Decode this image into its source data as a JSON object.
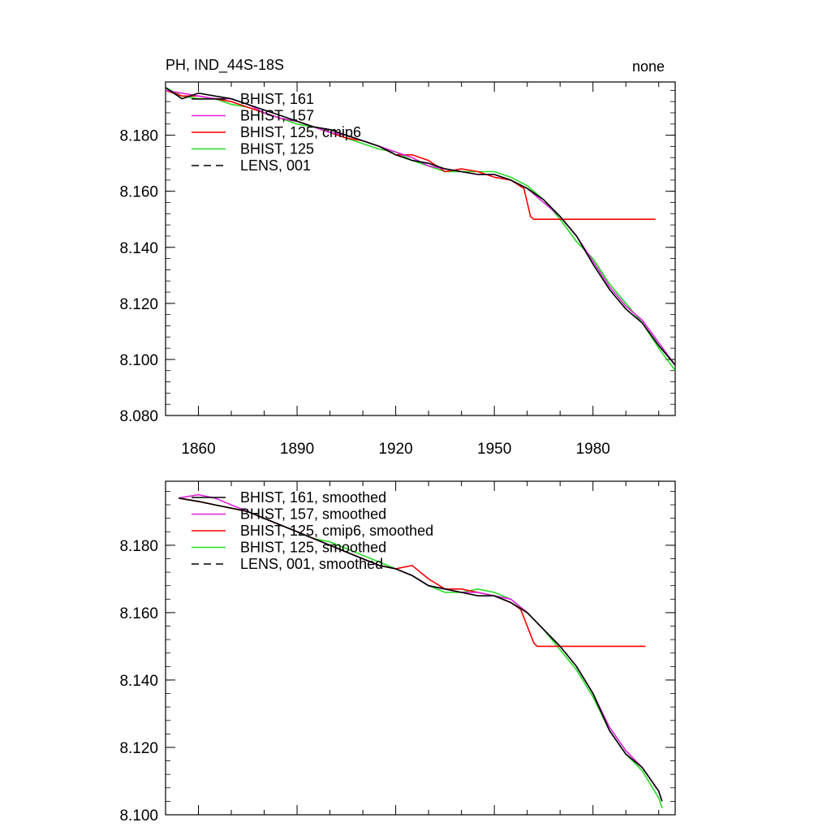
{
  "page": {
    "title_left": "PH, IND_44S-18S",
    "title_right": "none"
  },
  "colors": {
    "BHIST_161": "#000000",
    "BHIST_157": "#e020e0",
    "BHIST_125_cmip6": "#ff0000",
    "BHIST_125": "#22dd22",
    "LENS_001": "#000000"
  },
  "chart_data": [
    {
      "type": "line",
      "title": "PH, IND_44S-18S",
      "subtitle": "none",
      "xlim": [
        1850,
        2005
      ],
      "ylim": [
        8.08,
        8.199
      ],
      "x_ticks": [
        1860,
        1890,
        1920,
        1950,
        1980
      ],
      "y_ticks": [
        "8.080",
        "8.100",
        "8.120",
        "8.140",
        "8.160",
        "8.180"
      ],
      "legend_position": "top-left",
      "grid": false,
      "series": [
        {
          "name": "BHIST, 161",
          "style": "solid",
          "color_key": "BHIST_161",
          "x": [
            1850,
            1855,
            1860,
            1865,
            1870,
            1875,
            1880,
            1885,
            1890,
            1895,
            1900,
            1905,
            1910,
            1915,
            1920,
            1925,
            1930,
            1935,
            1940,
            1945,
            1950,
            1955,
            1960,
            1965,
            1970,
            1975,
            1980,
            1985,
            1990,
            1995,
            2000,
            2005
          ],
          "y": [
            8.197,
            8.193,
            8.195,
            8.194,
            8.193,
            8.191,
            8.189,
            8.187,
            8.185,
            8.183,
            8.182,
            8.18,
            8.178,
            8.176,
            8.173,
            8.171,
            8.17,
            8.168,
            8.167,
            8.166,
            8.166,
            8.164,
            8.161,
            8.157,
            8.151,
            8.144,
            8.134,
            8.125,
            8.118,
            8.113,
            8.105,
            8.098
          ]
        },
        {
          "name": "BHIST, 157",
          "style": "solid",
          "color_key": "BHIST_157",
          "x": [
            1850,
            1855,
            1860,
            1865,
            1870,
            1875,
            1880,
            1885,
            1890,
            1895,
            1900,
            1905,
            1910,
            1915,
            1920,
            1925,
            1930,
            1935,
            1940,
            1945,
            1950,
            1955,
            1960,
            1965,
            1970,
            1975,
            1980,
            1985,
            1990,
            1995,
            2000,
            2005
          ],
          "y": [
            8.196,
            8.195,
            8.194,
            8.193,
            8.193,
            8.191,
            8.188,
            8.186,
            8.185,
            8.183,
            8.181,
            8.18,
            8.178,
            8.176,
            8.174,
            8.172,
            8.169,
            8.168,
            8.167,
            8.166,
            8.166,
            8.164,
            8.161,
            8.156,
            8.151,
            8.144,
            8.135,
            8.126,
            8.119,
            8.114,
            8.106,
            8.098
          ]
        },
        {
          "name": "BHIST, 125, cmip6",
          "style": "solid",
          "color_key": "BHIST_125_cmip6",
          "x": [
            1850,
            1855,
            1860,
            1865,
            1870,
            1875,
            1880,
            1885,
            1890,
            1895,
            1900,
            1905,
            1910,
            1915,
            1920,
            1925,
            1930,
            1935,
            1940,
            1945,
            1950,
            1955,
            1959,
            1960,
            1961,
            1962,
            1970,
            1980,
            1990,
            1999
          ],
          "y": [
            8.196,
            8.194,
            8.194,
            8.193,
            8.192,
            8.19,
            8.188,
            8.186,
            8.185,
            8.183,
            8.181,
            8.179,
            8.178,
            8.176,
            8.173,
            8.173,
            8.171,
            8.167,
            8.168,
            8.167,
            8.165,
            8.164,
            8.161,
            8.156,
            8.151,
            8.15,
            8.15,
            8.15,
            8.15,
            8.15
          ]
        },
        {
          "name": "BHIST, 125",
          "style": "solid",
          "color_key": "BHIST_125",
          "x": [
            1850,
            1855,
            1860,
            1865,
            1870,
            1875,
            1880,
            1885,
            1890,
            1895,
            1900,
            1905,
            1910,
            1915,
            1920,
            1925,
            1930,
            1935,
            1940,
            1945,
            1950,
            1955,
            1960,
            1965,
            1970,
            1975,
            1980,
            1985,
            1990,
            1995,
            2000,
            2005
          ],
          "y": [
            8.197,
            8.194,
            8.193,
            8.193,
            8.191,
            8.19,
            8.188,
            8.186,
            8.184,
            8.183,
            8.181,
            8.179,
            8.177,
            8.175,
            8.174,
            8.171,
            8.169,
            8.167,
            8.167,
            8.167,
            8.167,
            8.165,
            8.162,
            8.157,
            8.15,
            8.142,
            8.136,
            8.127,
            8.12,
            8.113,
            8.104,
            8.096
          ]
        }
      ]
    },
    {
      "type": "line",
      "xlim": [
        1850,
        2005
      ],
      "ylim": [
        8.1,
        8.199
      ],
      "y_ticks": [
        "8.100",
        "8.120",
        "8.140",
        "8.160",
        "8.180"
      ],
      "legend_position": "top-left",
      "grid": false,
      "series": [
        {
          "name": "BHIST, 161, smoothed",
          "style": "solid",
          "color_key": "BHIST_161",
          "x": [
            1854,
            1860,
            1865,
            1870,
            1875,
            1880,
            1885,
            1890,
            1895,
            1900,
            1905,
            1910,
            1915,
            1920,
            1925,
            1930,
            1935,
            1940,
            1945,
            1950,
            1955,
            1960,
            1965,
            1970,
            1975,
            1980,
            1985,
            1990,
            1995,
            2000,
            2001
          ],
          "y": [
            8.194,
            8.193,
            8.192,
            8.191,
            8.19,
            8.188,
            8.186,
            8.184,
            8.182,
            8.18,
            8.178,
            8.176,
            8.174,
            8.173,
            8.171,
            8.168,
            8.167,
            8.166,
            8.165,
            8.165,
            8.163,
            8.16,
            8.155,
            8.15,
            8.144,
            8.136,
            8.125,
            8.118,
            8.114,
            8.107,
            8.104
          ]
        },
        {
          "name": "BHIST, 157, smoothed",
          "style": "solid",
          "color_key": "BHIST_157",
          "x": [
            1854,
            1860,
            1865,
            1870,
            1875,
            1880,
            1885,
            1890,
            1895,
            1900,
            1905,
            1910,
            1915,
            1920,
            1925,
            1930,
            1935,
            1940,
            1945,
            1950,
            1955,
            1960,
            1965,
            1970,
            1975,
            1980,
            1985,
            1990,
            1995,
            2000,
            2001
          ],
          "y": [
            8.194,
            8.195,
            8.194,
            8.192,
            8.19,
            8.188,
            8.186,
            8.184,
            8.182,
            8.18,
            8.178,
            8.176,
            8.174,
            8.173,
            8.171,
            8.168,
            8.167,
            8.166,
            8.166,
            8.165,
            8.164,
            8.16,
            8.155,
            8.15,
            8.144,
            8.136,
            8.126,
            8.119,
            8.114,
            8.107,
            8.104
          ]
        },
        {
          "name": "BHIST, 125, cmip6, smoothed",
          "style": "solid",
          "color_key": "BHIST_125_cmip6",
          "x": [
            1854,
            1860,
            1865,
            1870,
            1875,
            1880,
            1885,
            1890,
            1895,
            1900,
            1905,
            1910,
            1915,
            1920,
            1925,
            1930,
            1935,
            1940,
            1945,
            1950,
            1955,
            1958,
            1962,
            1963,
            1970,
            1980,
            1990,
            1996
          ],
          "y": [
            8.194,
            8.193,
            8.192,
            8.191,
            8.19,
            8.188,
            8.186,
            8.184,
            8.182,
            8.18,
            8.178,
            8.176,
            8.174,
            8.173,
            8.174,
            8.17,
            8.167,
            8.167,
            8.166,
            8.165,
            8.163,
            8.161,
            8.151,
            8.15,
            8.15,
            8.15,
            8.15,
            8.15
          ]
        },
        {
          "name": "BHIST, 125, smoothed",
          "style": "solid",
          "color_key": "BHIST_125",
          "x": [
            1854,
            1860,
            1865,
            1870,
            1875,
            1880,
            1885,
            1890,
            1895,
            1900,
            1905,
            1910,
            1915,
            1920,
            1925,
            1930,
            1935,
            1940,
            1945,
            1950,
            1955,
            1960,
            1965,
            1970,
            1975,
            1980,
            1985,
            1990,
            1995,
            2000,
            2001
          ],
          "y": [
            8.194,
            8.193,
            8.192,
            8.191,
            8.19,
            8.188,
            8.186,
            8.184,
            8.182,
            8.181,
            8.179,
            8.177,
            8.175,
            8.173,
            8.171,
            8.168,
            8.166,
            8.166,
            8.167,
            8.166,
            8.164,
            8.16,
            8.155,
            8.149,
            8.143,
            8.135,
            8.125,
            8.118,
            8.113,
            8.105,
            8.102
          ]
        }
      ],
      "legend_extra": {
        "name": "LENS, 001, smoothed",
        "style": "dashed",
        "color_key": "LENS_001"
      }
    }
  ],
  "legends": [
    [
      "BHIST, 161",
      "BHIST, 157",
      "BHIST, 125, cmip6",
      "BHIST, 125",
      "LENS, 001"
    ],
    [
      "BHIST, 161, smoothed",
      "BHIST, 157, smoothed",
      "BHIST, 125, cmip6, smoothed",
      "BHIST, 125, smoothed",
      "LENS, 001, smoothed"
    ]
  ]
}
